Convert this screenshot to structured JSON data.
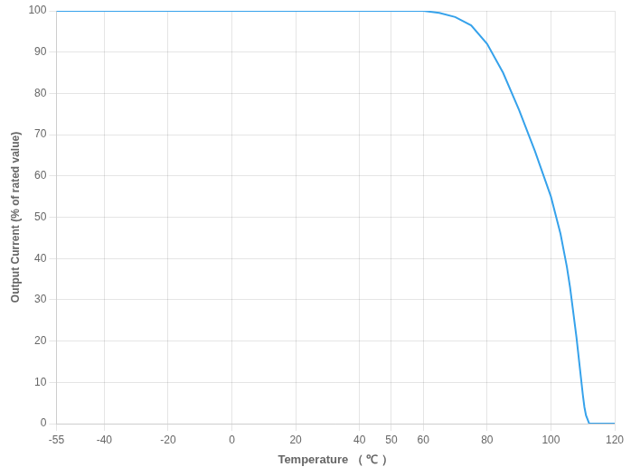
{
  "chart_data": {
    "type": "line",
    "xlabel": "Temperature （ ℃ ）",
    "ylabel": "Output Current (% of rated value)",
    "x": [
      -55,
      60,
      65,
      70,
      75,
      80,
      85,
      90,
      95,
      100,
      103,
      105,
      106,
      107,
      108,
      109,
      110,
      110.5,
      111,
      111.5,
      112,
      113,
      114,
      115,
      116,
      117,
      118,
      119,
      120
    ],
    "values": [
      100,
      100,
      99.5,
      98.5,
      96.5,
      92,
      85,
      76,
      66,
      55,
      46,
      38,
      33,
      27,
      21,
      14,
      7,
      4,
      2,
      1,
      0,
      0,
      0,
      0,
      0,
      0,
      0,
      0,
      0
    ],
    "xlim": [
      -55,
      120
    ],
    "ylim": [
      0,
      100
    ],
    "xticks": [
      -55,
      -40,
      -20,
      0,
      20,
      40,
      50,
      60,
      80,
      100,
      120
    ],
    "yticks": [
      0,
      10,
      20,
      30,
      40,
      50,
      60,
      70,
      80,
      90,
      100
    ],
    "grid": true
  }
}
